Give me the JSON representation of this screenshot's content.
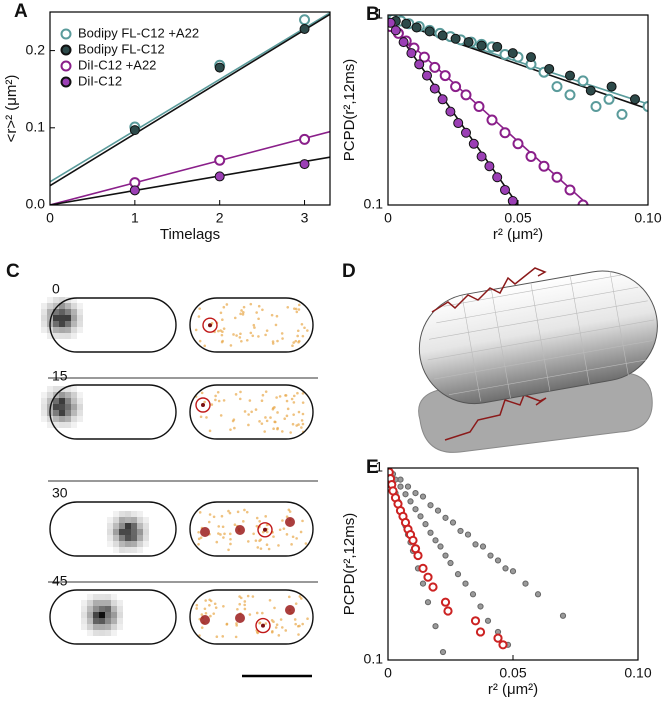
{
  "chart_data": [
    {
      "type": "line",
      "panel": "A",
      "xlabel": "Timelags",
      "ylabel": "<r>² (μm²)",
      "xlim": [
        0,
        3.3
      ],
      "ylim": [
        0,
        0.25
      ],
      "xticks": [
        0,
        1,
        2,
        3
      ],
      "yticks": [
        {
          "value": 0,
          "label": "0.0"
        },
        0.1,
        0.2
      ],
      "x": [
        1,
        2,
        3
      ],
      "series": [
        {
          "name": "Bodipy FL-C12 +A22",
          "color": "#5a9b9b",
          "marker": "open",
          "values": [
            0.101,
            0.181,
            0.24
          ],
          "fit_x": [
            0,
            3.3
          ],
          "fit_values": [
            0.03,
            0.249
          ]
        },
        {
          "name": "Bodipy FL-C12",
          "color": "#2d4a4a",
          "edgecolor": "#111",
          "marker": "filled",
          "values": [
            0.097,
            0.178,
            0.228
          ],
          "fit_x": [
            0,
            3.3
          ],
          "fit_values": [
            0.025,
            0.247
          ]
        },
        {
          "name": "DiI-C12 +A22",
          "color": "#8a1f8a",
          "marker": "open",
          "values": [
            0.029,
            0.058,
            0.085
          ],
          "fit_x": [
            0,
            3.3
          ],
          "fit_values": [
            0,
            0.095
          ]
        },
        {
          "name": "DiI-C12",
          "color": "#9b3fb5",
          "edgecolor": "#111",
          "marker": "filled",
          "values": [
            0.019,
            0.037,
            0.053
          ],
          "fit_x": [
            0,
            3.3
          ],
          "fit_values": [
            0,
            0.062
          ]
        }
      ]
    },
    {
      "type": "scatter",
      "panel": "B",
      "xlabel": "r² (μm²)",
      "ylabel": "PCPD(r²,12ms)",
      "log_y": true,
      "xlim": [
        0,
        0.1
      ],
      "ylim": [
        0.1,
        1
      ],
      "xticks": [
        0,
        0.05,
        {
          "value": 0.1,
          "label": "0.10"
        }
      ],
      "yticks": [
        0.1,
        1
      ],
      "series": [
        {
          "color": "#5a9b9b",
          "marker": "open",
          "x": [
            0.002,
            0.005,
            0.008,
            0.012,
            0.016,
            0.02,
            0.024,
            0.028,
            0.032,
            0.036,
            0.04,
            0.045,
            0.05,
            0.055,
            0.06,
            0.065,
            0.07,
            0.075,
            0.08,
            0.085,
            0.09,
            0.1
          ],
          "values": [
            0.95,
            0.93,
            0.9,
            0.87,
            0.83,
            0.8,
            0.77,
            0.74,
            0.72,
            0.7,
            0.68,
            0.62,
            0.6,
            0.55,
            0.5,
            0.42,
            0.38,
            0.45,
            0.33,
            0.36,
            0.3,
            0.33
          ],
          "fit_x": [
            0,
            0.1
          ],
          "fit_values": [
            0.95,
            0.34
          ]
        },
        {
          "color": "#2d4a4a",
          "edgecolor": "#111",
          "marker": "filled",
          "x": [
            0.003,
            0.007,
            0.011,
            0.016,
            0.021,
            0.026,
            0.031,
            0.036,
            0.042,
            0.048,
            0.055,
            0.062,
            0.07,
            0.078,
            0.086,
            0.095
          ],
          "values": [
            0.93,
            0.9,
            0.86,
            0.82,
            0.78,
            0.75,
            0.72,
            0.69,
            0.68,
            0.63,
            0.6,
            0.52,
            0.48,
            0.4,
            0.42,
            0.36
          ],
          "fit_x": [
            0,
            0.1
          ],
          "fit_values": [
            0.95,
            0.32
          ]
        },
        {
          "color": "#8a1f8a",
          "marker": "open",
          "x": [
            0.001,
            0.004,
            0.007,
            0.01,
            0.014,
            0.018,
            0.022,
            0.026,
            0.03,
            0.035,
            0.04,
            0.045,
            0.05,
            0.055,
            0.06,
            0.065,
            0.07,
            0.075
          ],
          "values": [
            0.87,
            0.8,
            0.73,
            0.67,
            0.6,
            0.53,
            0.48,
            0.42,
            0.38,
            0.33,
            0.28,
            0.24,
            0.21,
            0.18,
            0.16,
            0.14,
            0.12,
            0.1
          ],
          "fit_x": [
            0,
            0.077
          ],
          "fit_values": [
            0.9,
            0.1
          ]
        },
        {
          "color": "#9b3fb5",
          "edgecolor": "#111",
          "marker": "filled",
          "x": [
            0.001,
            0.003,
            0.006,
            0.009,
            0.012,
            0.015,
            0.018,
            0.021,
            0.024,
            0.027,
            0.03,
            0.033,
            0.036,
            0.039,
            0.042,
            0.045,
            0.048
          ],
          "values": [
            0.91,
            0.83,
            0.72,
            0.63,
            0.55,
            0.48,
            0.41,
            0.36,
            0.31,
            0.27,
            0.24,
            0.21,
            0.18,
            0.16,
            0.14,
            0.12,
            0.105
          ],
          "fit_x": [
            0,
            0.05
          ],
          "fit_values": [
            0.95,
            0.1
          ]
        }
      ]
    },
    {
      "type": "scatter",
      "panel": "E",
      "xlabel": "r² (μm²)",
      "ylabel": "PCPD(r²,12ms)",
      "log_y": true,
      "xlim": [
        0,
        0.1
      ],
      "ylim": [
        0.1,
        1
      ],
      "xticks": [
        0,
        0.05,
        {
          "value": 0.1,
          "label": "0.10"
        }
      ],
      "yticks": [
        0.1,
        1
      ],
      "series": [
        {
          "color": "#9a9a9a",
          "edgecolor": "#666",
          "marker": "filled",
          "x": [
            0.002,
            0.005,
            0.008,
            0.011,
            0.014,
            0.017,
            0.02,
            0.023,
            0.026,
            0.029,
            0.032,
            0.035,
            0.038,
            0.041,
            0.044,
            0.047,
            0.05,
            0.055,
            0.06,
            0.07,
            0.001,
            0.003,
            0.005,
            0.007,
            0.009,
            0.011,
            0.013,
            0.015,
            0.017,
            0.019,
            0.021,
            0.023,
            0.025,
            0.028,
            0.031,
            0.034,
            0.037,
            0.04,
            0.044,
            0.048,
            0.001,
            0.002,
            0.003,
            0.004,
            0.005,
            0.006,
            0.007,
            0.008,
            0.009,
            0.01,
            0.012,
            0.014,
            0.016,
            0.019,
            0.022
          ],
          "values": [
            0.93,
            0.87,
            0.8,
            0.74,
            0.71,
            0.64,
            0.6,
            0.55,
            0.52,
            0.47,
            0.45,
            0.4,
            0.39,
            0.35,
            0.33,
            0.3,
            0.29,
            0.25,
            0.22,
            0.17,
            0.95,
            0.87,
            0.8,
            0.73,
            0.67,
            0.61,
            0.56,
            0.51,
            0.46,
            0.42,
            0.39,
            0.35,
            0.32,
            0.28,
            0.25,
            0.22,
            0.19,
            0.16,
            0.14,
            0.12,
            0.9,
            0.82,
            0.74,
            0.67,
            0.6,
            0.55,
            0.5,
            0.45,
            0.41,
            0.37,
            0.3,
            0.25,
            0.2,
            0.15,
            0.11
          ]
        },
        {
          "color": "#cc2222",
          "marker": "open",
          "x": [
            0.0005,
            0.001,
            0.0015,
            0.002,
            0.003,
            0.004,
            0.005,
            0.006,
            0.007,
            0.008,
            0.009,
            0.01,
            0.011,
            0.012,
            0.014,
            0.016,
            0.018,
            0.023,
            0.024,
            0.035,
            0.037,
            0.044,
            0.046
          ],
          "values": [
            0.95,
            0.88,
            0.82,
            0.76,
            0.7,
            0.65,
            0.6,
            0.56,
            0.52,
            0.48,
            0.45,
            0.42,
            0.38,
            0.35,
            0.3,
            0.27,
            0.24,
            0.2,
            0.18,
            0.16,
            0.14,
            0.13,
            0.12
          ]
        }
      ]
    }
  ],
  "panel_c": {
    "label": "C",
    "frames": [
      "0",
      "15",
      "30",
      "45"
    ]
  },
  "panel_d": {
    "label": "D"
  }
}
